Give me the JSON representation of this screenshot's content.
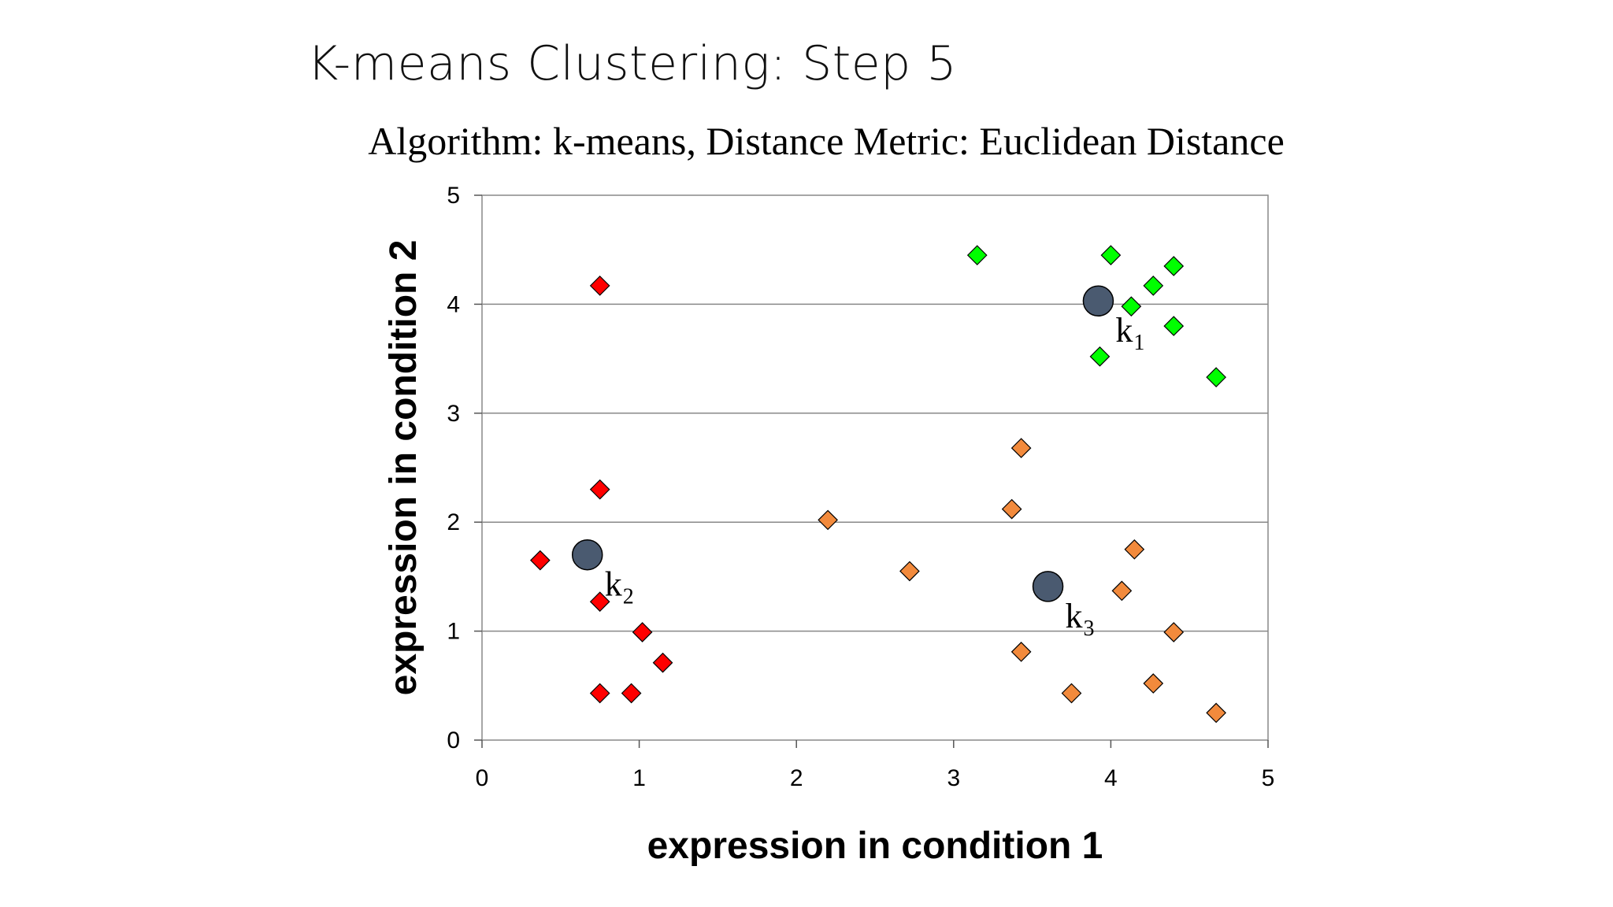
{
  "slide": {
    "title": "K-means Clustering: Step 5"
  },
  "chart_data": {
    "type": "scatter",
    "title": "Algorithm: k-means, Distance Metric: Euclidean Distance",
    "xlabel": "expression in condition 1",
    "ylabel": "expression in condition 2",
    "xlim": [
      0,
      5
    ],
    "ylim": [
      0,
      5
    ],
    "xticks": [
      "0",
      "1",
      "2",
      "3",
      "4",
      "5"
    ],
    "yticks": [
      "0",
      "1",
      "2",
      "3",
      "4",
      "5"
    ],
    "grid": "horizontal",
    "legend": "none",
    "series": [
      {
        "color": "#00ff00",
        "marker": "diamond",
        "points": [
          [
            3.15,
            4.45
          ],
          [
            4.0,
            4.45
          ],
          [
            4.4,
            4.35
          ],
          [
            4.27,
            4.17
          ],
          [
            4.13,
            3.98
          ],
          [
            4.4,
            3.8
          ],
          [
            3.93,
            3.52
          ],
          [
            4.67,
            3.33
          ]
        ]
      },
      {
        "color": "#ff0000",
        "marker": "diamond",
        "points": [
          [
            0.75,
            4.17
          ],
          [
            0.75,
            2.3
          ],
          [
            0.37,
            1.65
          ],
          [
            0.75,
            1.27
          ],
          [
            1.02,
            0.99
          ],
          [
            1.15,
            0.71
          ],
          [
            0.75,
            0.43
          ],
          [
            0.95,
            0.43
          ]
        ]
      },
      {
        "color": "#f28a3c",
        "marker": "diamond",
        "points": [
          [
            3.43,
            2.68
          ],
          [
            3.37,
            2.12
          ],
          [
            2.2,
            2.02
          ],
          [
            4.15,
            1.75
          ],
          [
            2.72,
            1.55
          ],
          [
            4.07,
            1.37
          ],
          [
            4.4,
            0.99
          ],
          [
            3.43,
            0.81
          ],
          [
            3.75,
            0.43
          ],
          [
            4.27,
            0.52
          ],
          [
            4.67,
            0.25
          ]
        ]
      }
    ],
    "centroids": [
      {
        "label": "k",
        "subscript": "1",
        "x": 3.92,
        "y": 4.03
      },
      {
        "label": "k",
        "subscript": "2",
        "x": 0.67,
        "y": 1.7
      },
      {
        "label": "k",
        "subscript": "3",
        "x": 3.6,
        "y": 1.41
      }
    ],
    "centroid_color": "#4a5a70"
  }
}
